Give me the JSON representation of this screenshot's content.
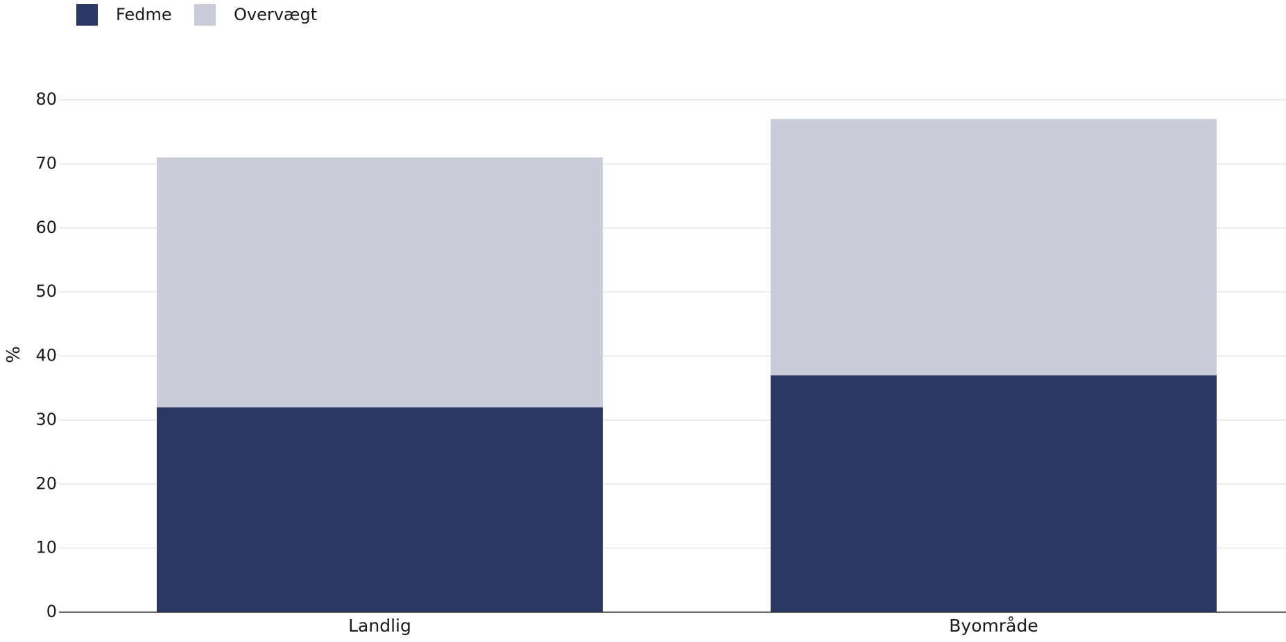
{
  "chart_data": {
    "type": "bar",
    "stacked": true,
    "categories": [
      "Landlig",
      "Byområde"
    ],
    "series": [
      {
        "name": "Fedme",
        "color": "#2b3764",
        "values": [
          32,
          37
        ]
      },
      {
        "name": "Overvægt",
        "color": "#cbccd9",
        "values": [
          39,
          40
        ]
      }
    ],
    "title": "",
    "xlabel": "",
    "ylabel": "%",
    "ylim": [
      0,
      80
    ],
    "yticks": [
      "0",
      "10",
      "20",
      "30",
      "40",
      "50",
      "60",
      "70",
      "80"
    ],
    "grid": true,
    "legend_position": "top-left"
  }
}
